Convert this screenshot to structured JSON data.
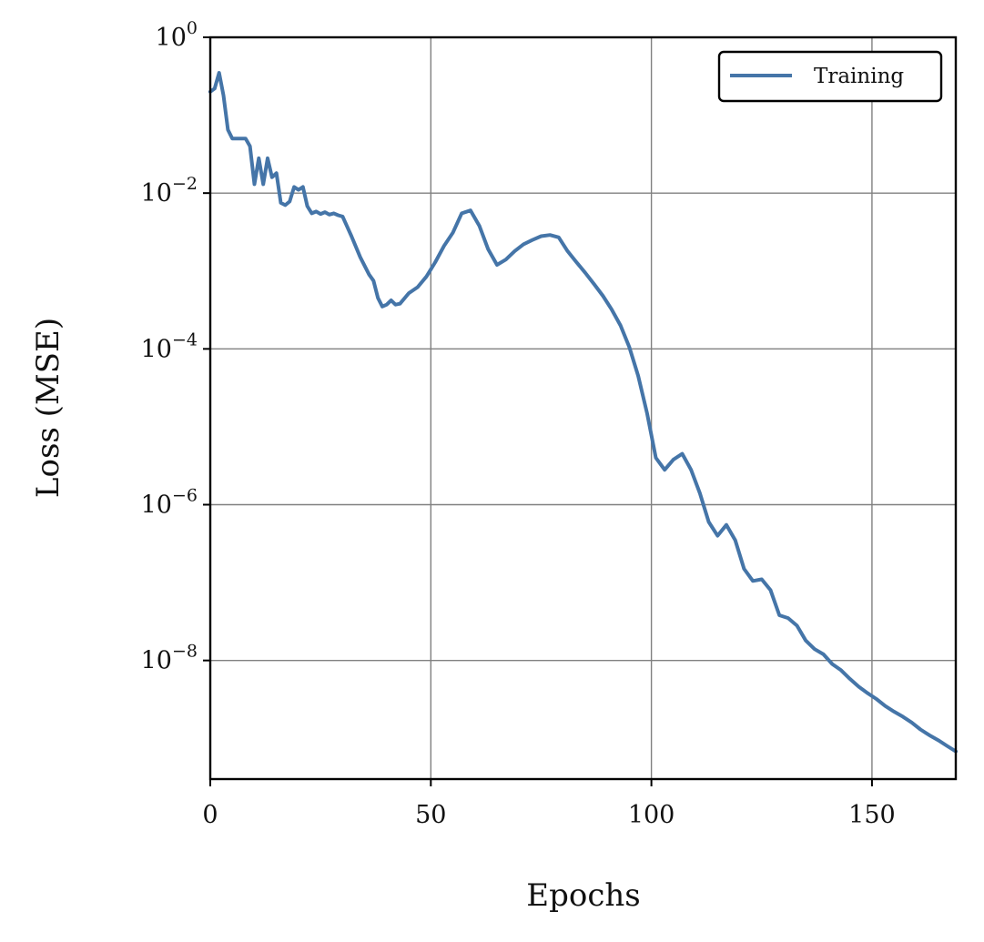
{
  "chart_data": {
    "type": "line",
    "title": "",
    "xlabel": "Epochs",
    "ylabel": "Loss (MSE)",
    "xlim": [
      0,
      169
    ],
    "ylim": [
      3e-10,
      1.0
    ],
    "yscale": "log",
    "grid": true,
    "legend_position": "top-right",
    "x_ticks": [
      {
        "value": 0,
        "label": "0"
      },
      {
        "value": 50,
        "label": "50"
      },
      {
        "value": 100,
        "label": "100"
      },
      {
        "value": 150,
        "label": "150"
      }
    ],
    "y_ticks": [
      {
        "value": 1,
        "base": "10",
        "exp": "0"
      },
      {
        "value": 0.01,
        "base": "10",
        "exp": "−2"
      },
      {
        "value": 0.0001,
        "base": "10",
        "exp": "−4"
      },
      {
        "value": 1e-06,
        "base": "10",
        "exp": "−6"
      },
      {
        "value": 1e-08,
        "base": "10",
        "exp": "−8"
      }
    ],
    "colors": {
      "line": "#4575a8",
      "grid": "#808080",
      "axes": "#000000"
    },
    "series": [
      {
        "name": "Training",
        "x": [
          0,
          1,
          2,
          3,
          4,
          5,
          6,
          7,
          8,
          9,
          10,
          11,
          12,
          13,
          14,
          15,
          16,
          17,
          18,
          19,
          20,
          21,
          22,
          23,
          24,
          25,
          26,
          27,
          28,
          29,
          30,
          32,
          34,
          36,
          37,
          38,
          39,
          40,
          41,
          42,
          43,
          45,
          47,
          49,
          51,
          53,
          55,
          57,
          59,
          61,
          63,
          65,
          67,
          69,
          71,
          73,
          75,
          77,
          79,
          81,
          83,
          85,
          87,
          89,
          91,
          93,
          95,
          97,
          99,
          101,
          103,
          105,
          107,
          109,
          111,
          113,
          115,
          117,
          119,
          121,
          123,
          125,
          127,
          129,
          131,
          133,
          135,
          137,
          139,
          141,
          143,
          145,
          147,
          149,
          151,
          153,
          155,
          157,
          159,
          161,
          163,
          165,
          167,
          169
        ],
        "y": [
          0.2,
          0.22,
          0.35,
          0.18,
          0.065,
          0.05,
          0.05,
          0.05,
          0.05,
          0.04,
          0.013,
          0.028,
          0.013,
          0.028,
          0.016,
          0.018,
          0.0075,
          0.007,
          0.0078,
          0.012,
          0.011,
          0.012,
          0.0068,
          0.0055,
          0.0058,
          0.0054,
          0.0057,
          0.0053,
          0.0055,
          0.0052,
          0.005,
          0.0028,
          0.0015,
          0.0009,
          0.00075,
          0.00045,
          0.00035,
          0.00037,
          0.00042,
          0.00037,
          0.00038,
          0.00052,
          0.00062,
          0.00085,
          0.0013,
          0.0021,
          0.0031,
          0.0055,
          0.006,
          0.0038,
          0.0019,
          0.0012,
          0.0014,
          0.0018,
          0.0022,
          0.0025,
          0.0028,
          0.0029,
          0.0027,
          0.0018,
          0.0013,
          0.00095,
          0.00068,
          0.00048,
          0.00032,
          0.0002,
          0.000105,
          4.5e-05,
          1.5e-05,
          4e-06,
          2.8e-06,
          3.8e-06,
          4.5e-06,
          2.8e-06,
          1.4e-06,
          6e-07,
          4e-07,
          5.5e-07,
          3.5e-07,
          1.5e-07,
          1.05e-07,
          1.1e-07,
          8e-08,
          3.8e-08,
          3.5e-08,
          2.8e-08,
          1.8e-08,
          1.4e-08,
          1.2e-08,
          9e-09,
          7.5e-09,
          5.8e-09,
          4.6e-09,
          3.8e-09,
          3.2e-09,
          2.6e-09,
          2.2e-09,
          1.9e-09,
          1.6e-09,
          1.3e-09,
          1.1e-09,
          9.5e-10,
          8e-10,
          6.8e-10
        ]
      }
    ]
  }
}
